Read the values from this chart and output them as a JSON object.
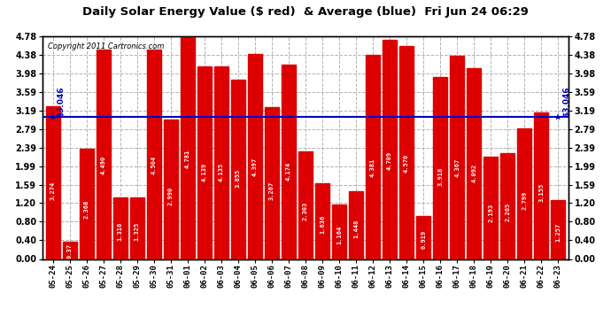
{
  "title": "Daily Solar Energy Value ($ red)  & Average (blue)  Fri Jun 24 06:29",
  "copyright": "Copyright 2011 Cartronics.com",
  "average": 3.046,
  "bar_color": "#DD0000",
  "average_color": "#0000BB",
  "background_color": "#FFFFFF",
  "plot_bg_color": "#FFFFFF",
  "grid_color": "#AAAAAA",
  "ylim": [
    0.0,
    4.78
  ],
  "yticks": [
    0.0,
    0.4,
    0.8,
    1.2,
    1.59,
    1.99,
    2.39,
    2.79,
    3.19,
    3.59,
    3.98,
    4.38,
    4.78
  ],
  "categories": [
    "05-24",
    "05-25",
    "05-26",
    "05-27",
    "05-28",
    "05-29",
    "05-30",
    "05-31",
    "06-01",
    "06-02",
    "06-03",
    "06-04",
    "06-05",
    "06-06",
    "06-07",
    "06-08",
    "06-09",
    "06-10",
    "06-11",
    "06-12",
    "06-13",
    "06-14",
    "06-15",
    "06-16",
    "06-17",
    "06-18",
    "06-19",
    "06-20",
    "06-21",
    "06-22",
    "06-23"
  ],
  "values": [
    3.274,
    0.37,
    2.368,
    4.49,
    1.316,
    1.325,
    4.504,
    2.99,
    4.781,
    4.139,
    4.135,
    3.855,
    4.397,
    3.267,
    4.174,
    2.303,
    1.636,
    1.164,
    1.448,
    4.381,
    4.709,
    4.57,
    0.919,
    3.918,
    4.367,
    4.092,
    2.193,
    2.265,
    2.799,
    3.155,
    1.257
  ],
  "bar_labels": [
    "3.274",
    "0.37",
    "2.368",
    "4.490",
    "1.316",
    "1.325",
    "4.504",
    "2.990",
    "4.781",
    "4.139",
    "4.135",
    "3.855",
    "4.397",
    "3.267",
    "4.174",
    "2.303",
    "1.636",
    "1.164",
    "1.448",
    "4.381",
    "4.709",
    "4.570",
    "0.919",
    "3.918",
    "4.367",
    "4.092",
    "2.193",
    "2.265",
    "2.799",
    "3.155",
    "1.257"
  ]
}
